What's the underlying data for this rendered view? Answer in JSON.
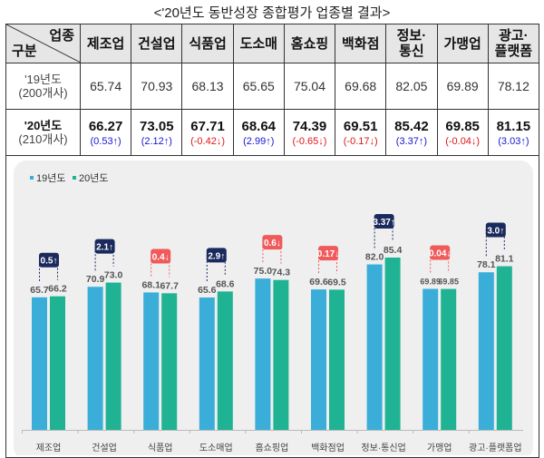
{
  "title": "<'20년도 동반성장 종합평가 업종별 결과>",
  "table": {
    "corner_top": "업종",
    "corner_bottom": "구분",
    "headers": [
      "제조업",
      "건설업",
      "식품업",
      "도소매",
      "홈쇼핑",
      "백화점",
      "정보·\n통신",
      "가맹업",
      "광고·\n플랫폼"
    ],
    "row19": {
      "label1": "'19년도",
      "label2": "(200개사)",
      "values": [
        "65.74",
        "70.93",
        "68.13",
        "65.65",
        "75.04",
        "69.68",
        "82.05",
        "69.89",
        "78.12"
      ]
    },
    "row20": {
      "label1": "'20년도",
      "label2": "(210개사)",
      "values": [
        "66.27",
        "73.05",
        "67.71",
        "68.64",
        "74.39",
        "69.51",
        "85.42",
        "69.85",
        "81.15"
      ],
      "changes": [
        "(0.53↑)",
        "(2.12↑)",
        "(-0.42↓)",
        "(2.99↑)",
        "(-0.65↓)",
        "(-0.17↓)",
        "(3.37↑)",
        "(-0.04↓)",
        "(3.03↑)"
      ],
      "directions": [
        "up",
        "up",
        "down",
        "up",
        "down",
        "down",
        "up",
        "down",
        "up"
      ]
    }
  },
  "colors": {
    "series19": "#3aaed8",
    "series20": "#1fb394",
    "up_box": "#1b2a5c",
    "down_box": "#f05a5a",
    "panel": "#efefef"
  },
  "chart_data": {
    "type": "bar",
    "categories": [
      "제조업",
      "건설업",
      "식품업",
      "도소매업",
      "홈쇼핑업",
      "백화점업",
      "정보·통신업",
      "가맹업",
      "광고·플랫폼업"
    ],
    "series": [
      {
        "name": "19년도",
        "values": [
          65.7,
          70.9,
          68.1,
          65.6,
          75.0,
          69.6,
          82.0,
          69.89,
          78.1
        ],
        "labels": [
          "65.7",
          "70.9",
          "68.1",
          "65.6",
          "75.0",
          "69.6",
          "82.0",
          "69.89",
          "78.1"
        ]
      },
      {
        "name": "20년도",
        "values": [
          66.2,
          73.0,
          67.7,
          68.6,
          74.3,
          69.5,
          85.4,
          69.85,
          81.1
        ],
        "labels": [
          "66.2",
          "73.0",
          "67.7",
          "68.6",
          "74.3",
          "69.5",
          "85.4",
          "69.85",
          "81.1"
        ]
      }
    ],
    "annotations": [
      "0.5↑",
      "2.1↑",
      "0.4↓",
      "2.9↑",
      "0.6↓",
      "0.17↓",
      "3.37↑",
      "0.04↓",
      "3.0↑"
    ],
    "annotation_directions": [
      "up",
      "up",
      "down",
      "up",
      "down",
      "down",
      "up",
      "down",
      "up"
    ],
    "ylim": [
      0,
      90
    ],
    "grid": false,
    "legend": "top-left"
  }
}
